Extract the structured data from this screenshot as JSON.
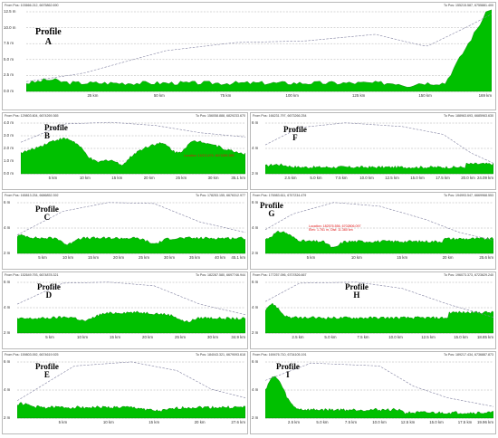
{
  "colors": {
    "terrain": "#00c000",
    "terrain_edge": "#007a00",
    "grid": "#9a9a9a",
    "los": "#8080a0",
    "marker": "#e03030"
  },
  "panels": [
    {
      "id": "A",
      "title_word": "Profile",
      "title_letter": "A",
      "from": "From Pos: 103666.212, 6675862.690",
      "to": "To Pos: 155215.587, 6755881.400",
      "y_ticks": [
        "0.0 m",
        "2.5 m",
        "5.0 m",
        "7.5 m",
        "10.0 m",
        "12.5 m"
      ],
      "x_ticks": [
        "25 km",
        "50 km",
        "75 km",
        "100 km",
        "125 km",
        "150 km",
        "169 km"
      ]
    },
    {
      "id": "B",
      "title_word": "Profile",
      "title_letter": "B",
      "from": "From Pos: 129803.604, 6674269.365",
      "to": "To Pos: 156058.888, 6829233.670",
      "y_ticks": [
        "0.0 m",
        "1.0 m",
        "2.0 m",
        "3.0 m",
        "4.0 m"
      ],
      "x_ticks": [
        "5 km",
        "10 km",
        "15 km",
        "20 km",
        "25 km",
        "30 km",
        "35.1 km"
      ],
      "annotation": [
        "Location: 14213,476, 6674269,385"
      ]
    },
    {
      "id": "F",
      "title_word": "Profile",
      "title_letter": "F",
      "from": "From Pos: 166231.797, 6673266.254",
      "to": "To Pos: 188963.693, 6685963.630",
      "y_ticks": [
        "2 m",
        "4 m",
        "6 m"
      ],
      "x_ticks": [
        "2.5 km",
        "5.0 km",
        "7.5 km",
        "10.0 km",
        "12.5 km",
        "15.0 km",
        "17.5 km",
        "20.0 km",
        "24.09 km"
      ]
    },
    {
      "id": "C",
      "title_word": "Profile",
      "title_letter": "C",
      "from": "From Pos: 165813.234, 6686852.392",
      "to": "To Pos: 178253.155, 6676312.977",
      "y_ticks": [
        "2 m",
        "4 m",
        "6 m"
      ],
      "x_ticks": [
        "5 km",
        "10 km",
        "15 km",
        "20 km",
        "25 km",
        "30 km",
        "35 km",
        "40 km",
        "45.1 km"
      ]
    },
    {
      "id": "G",
      "title_word": "Profile",
      "title_letter": "G",
      "from": "From Pos: 176983.611, 6707234.479",
      "to": "To Pos: 194993.547, 6669968.553",
      "y_ticks": [
        "2 m",
        "4 m",
        "6 m"
      ],
      "x_ticks": [
        "5 km",
        "10 km",
        "15 km",
        "20 km",
        "25.6 km"
      ],
      "annotation": [
        "Location: 182576.556, 6702806.097",
        "Elev: 1.761 m, Dist: 11.360 km"
      ]
    },
    {
      "id": "D",
      "title_word": "Profile",
      "title_letter": "D",
      "from": "From Pos: 152649.793, 6674878.321",
      "to": "To Pos: 182287.580, 6697746.944",
      "y_ticks": [
        "2 m",
        "4 m",
        "6 m"
      ],
      "x_ticks": [
        "5 km",
        "10 km",
        "15 km",
        "20 km",
        "25 km",
        "30 km",
        "34.9 km"
      ]
    },
    {
      "id": "H",
      "title_word": "Profile",
      "title_letter": "H",
      "from": "From Pos: 177257.096, 6707826.667",
      "to": "To Pos: 196073.373, 6723629.240",
      "y_ticks": [
        "2 m",
        "4 m",
        "6 m"
      ],
      "x_ticks": [
        "2.5 km",
        "5.0 km",
        "7.5 km",
        "10.0 km",
        "12.5 km",
        "15.0 km",
        "18.85 km"
      ]
    },
    {
      "id": "E",
      "title_word": "Profile",
      "title_letter": "E",
      "from": "From Pos: 159803.092, 6674619.925",
      "to": "To Pos: 184043.321, 6679093.618",
      "y_ticks": [
        "2 m",
        "4 m",
        "6 m"
      ],
      "x_ticks": [
        "5 km",
        "10 km",
        "15 km",
        "20 km",
        "27.6 km"
      ]
    },
    {
      "id": "I",
      "title_word": "Profile",
      "title_letter": "I",
      "from": "From Pos: 169476.710, 6734105.191",
      "to": "To Pos: 189217.434, 6736887.873",
      "y_ticks": [
        "2 m",
        "4 m",
        "6 m"
      ],
      "x_ticks": [
        "2.5 km",
        "5.0 km",
        "7.5 km",
        "10.0 km",
        "12.5 km",
        "15.0 km",
        "17.5 km",
        "19.96 km"
      ]
    }
  ]
}
